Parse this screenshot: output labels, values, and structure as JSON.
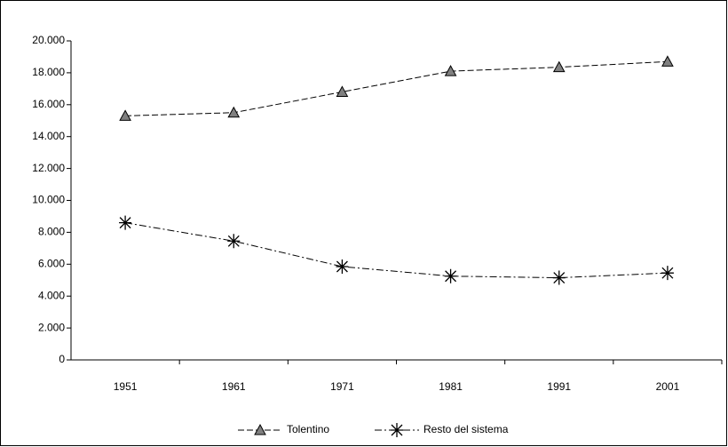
{
  "chart_data": {
    "type": "line",
    "categories": [
      "1951",
      "1961",
      "1971",
      "1981",
      "1991",
      "2001"
    ],
    "series": [
      {
        "name": "Tolentino",
        "color": "#000000",
        "marker": "triangle",
        "marker_color": "#808080",
        "dash": "dashed",
        "values": [
          15300,
          15500,
          16800,
          18100,
          18350,
          18700
        ]
      },
      {
        "name": "Resto del sistema",
        "color": "#000000",
        "marker": "asterisk",
        "marker_color": "#000000",
        "dash": "dashdot",
        "values": [
          8600,
          7450,
          5850,
          5250,
          5150,
          5450
        ]
      }
    ],
    "ylim": [
      0,
      20000
    ],
    "yticks": [
      0,
      {
        "value": 2000,
        "label": "2.000"
      },
      {
        "value": 4000,
        "label": "4.000"
      },
      {
        "value": 6000,
        "label": "6.000"
      },
      {
        "value": 8000,
        "label": "8.000"
      },
      {
        "value": 10000,
        "label": "10.000"
      },
      {
        "value": 12000,
        "label": "12.000"
      },
      {
        "value": 14000,
        "label": "14.000"
      },
      {
        "value": 16000,
        "label": "16.000"
      },
      {
        "value": 18000,
        "label": "18.000"
      },
      {
        "value": 20000,
        "label": "20.000"
      }
    ],
    "grid": false,
    "legend": "bottom"
  }
}
